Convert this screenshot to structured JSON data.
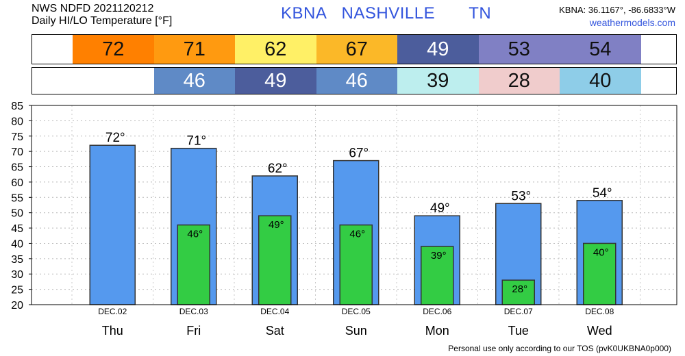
{
  "header": {
    "line1": "NWS NDFD 2021120212",
    "line2": "Daily HI/LO Temperature [°F]",
    "station_code": "KBNA",
    "city": "NASHVILLE",
    "state": "TN",
    "coords": "KBNA: 36.1167°, -86.6833°W",
    "site": "weathermodels.com"
  },
  "footer": "Personal use only according to our TOS (pvK0UKBNA0p000)",
  "colors": {
    "high_bar": "#5599ee",
    "low_bar": "#33cc44",
    "hi_cells": [
      "#ff8000",
      "#ff9a10",
      "#fff066",
      "#fbb828",
      "#4c5d9c",
      "#8080c4",
      "#8080c4"
    ],
    "lo_cells": [
      "#5f8ac6",
      "#4c5d9c",
      "#5f8ac6",
      "#bdeeee",
      "#f0cccc",
      "#8ecde8"
    ]
  },
  "chart_data": {
    "type": "bar",
    "categories": [
      "Thu",
      "Fri",
      "Sat",
      "Sun",
      "Mon",
      "Tue",
      "Wed"
    ],
    "dates": [
      "DEC.02",
      "DEC.03",
      "DEC.04",
      "DEC.05",
      "DEC.06",
      "DEC.07",
      "DEC.08"
    ],
    "series": [
      {
        "values": [
          72,
          71,
          62,
          67,
          49,
          53,
          54
        ]
      },
      {
        "values": [
          null,
          46,
          49,
          46,
          39,
          28,
          40
        ]
      }
    ],
    "high_labels": [
      "72°",
      "71°",
      "62°",
      "67°",
      "49°",
      "53°",
      "54°"
    ],
    "low_labels": [
      "",
      "46°",
      "49°",
      "46°",
      "39°",
      "28°",
      "40°"
    ],
    "hi_strip": [
      "72",
      "71",
      "62",
      "67",
      "49",
      "53",
      "54"
    ],
    "lo_strip": [
      "",
      "46",
      "49",
      "46",
      "39",
      "28",
      "40"
    ],
    "yticks": [
      "20",
      "25",
      "30",
      "35",
      "40",
      "45",
      "50",
      "55",
      "60",
      "65",
      "70",
      "75",
      "80",
      "85"
    ],
    "ylim": [
      20,
      85
    ],
    "grid": true
  }
}
